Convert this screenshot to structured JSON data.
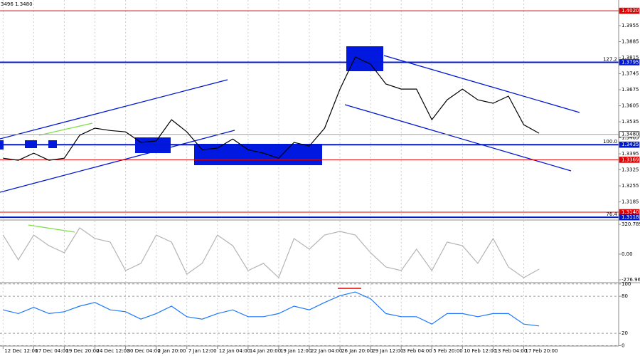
{
  "chart_data": [
    {
      "type": "line",
      "title": "3496 1.3480",
      "xlim": [
        -1,
        201
      ],
      "ylim": [
        1.3109,
        1.4067
      ],
      "yticks": [
        1.3185,
        1.3255,
        1.3325,
        1.3395,
        1.3465,
        1.3535,
        1.3605,
        1.3675,
        1.3745,
        1.3815,
        1.3885,
        1.3955
      ],
      "levels": [
        {
          "value": 1.402,
          "label": "1.4020",
          "color": "#e00000"
        },
        {
          "value": 1.3795,
          "label": "1.3795",
          "color": "#0018d0",
          "tag": "127.2"
        },
        {
          "value": 1.348,
          "label": "1.3480",
          "color": "#a0a0a0"
        },
        {
          "value": 1.3435,
          "label": "1.3435",
          "color": "#0018d0",
          "tag": "100.0"
        },
        {
          "value": 1.3369,
          "label": "1.3369",
          "color": "#e00000"
        },
        {
          "value": 1.314,
          "label": "1.3140",
          "color": "#e00000"
        },
        {
          "value": 1.3118,
          "label": "1.3118",
          "color": "#0018d0",
          "tag": "76.4"
        }
      ],
      "series": [
        {
          "color": "#000000",
          "values": [
            1.3376,
            1.3367,
            1.3398,
            1.3367,
            1.3376,
            1.3476,
            1.3507,
            1.3497,
            1.3491,
            1.3445,
            1.3451,
            1.3544,
            1.3491,
            1.3413,
            1.342,
            1.346,
            1.3413,
            1.3398,
            1.3376,
            1.3445,
            1.3429,
            1.3507,
            1.3678,
            1.3818,
            1.3787,
            1.37,
            1.3678,
            1.3678,
            1.3544,
            1.3631,
            1.3678,
            1.3631,
            1.3616,
            1.3647,
            1.3522,
            1.3485
          ]
        }
      ]
    },
    {
      "type": "line",
      "xlim": [
        -1,
        201
      ],
      "ylim": [
        -300,
        360
      ],
      "yticks": [
        {
          "value": 320.7896,
          "label": "320.7896"
        },
        {
          "value": 0,
          "label": "0.00"
        },
        {
          "value": -276.96,
          "label": "-276.960"
        }
      ],
      "series": [
        {
          "color": "#b4b4b4",
          "values": [
            206,
            -62,
            206,
            91,
            15,
            283,
            168,
            130,
            -177,
            -100,
            206,
            130,
            -216,
            -100,
            206,
            91,
            -177,
            -100,
            -254,
            168,
            53,
            206,
            245,
            206,
            15,
            -139,
            -177,
            53,
            -177,
            130,
            91,
            -100,
            168,
            -139,
            -254,
            -162
          ]
        }
      ]
    },
    {
      "type": "line",
      "xlim": [
        -1,
        201
      ],
      "ylim": [
        0,
        100
      ],
      "yticks": [
        0,
        20,
        80,
        100
      ],
      "grid": true,
      "xticks": [
        {
          "value": 0,
          "label": "12 Dec 12:00"
        },
        {
          "value": 10,
          "label": "17 Dec 04:00"
        },
        {
          "value": 20,
          "label": "19 Dec 20:00"
        },
        {
          "value": 30,
          "label": "24 Dec 12:00"
        },
        {
          "value": 40,
          "label": "30 Dec 04:00"
        },
        {
          "value": 50,
          "label": "2 Jan 20:00"
        },
        {
          "value": 60,
          "label": "7 Jan 12:00"
        },
        {
          "value": 70,
          "label": "12 Jan 04:00"
        },
        {
          "value": 80,
          "label": "14 Jan 20:00"
        },
        {
          "value": 90,
          "label": "19 Jan 12:00"
        },
        {
          "value": 100,
          "label": "22 Jan 04:00"
        },
        {
          "value": 110,
          "label": "26 Jan 20:00"
        },
        {
          "value": 120,
          "label": "29 Jan 12:00"
        },
        {
          "value": 130,
          "label": "3 Feb 04:00"
        },
        {
          "value": 140,
          "label": "5 Feb 20:00"
        },
        {
          "value": 150,
          "label": "10 Feb 12:00"
        },
        {
          "value": 160,
          "label": "13 Feb 04:00"
        },
        {
          "value": 170,
          "label": "17 Feb 20:00"
        }
      ],
      "series": [
        {
          "color": "#1e78ff",
          "values": [
            58,
            52,
            62,
            52,
            55,
            64,
            70,
            58,
            55,
            43,
            52,
            64,
            47,
            43,
            52,
            58,
            47,
            47,
            52,
            64,
            58,
            70,
            81,
            87,
            76,
            52,
            47,
            47,
            35,
            52,
            52,
            47,
            52,
            52,
            35,
            32
          ]
        }
      ]
    }
  ]
}
